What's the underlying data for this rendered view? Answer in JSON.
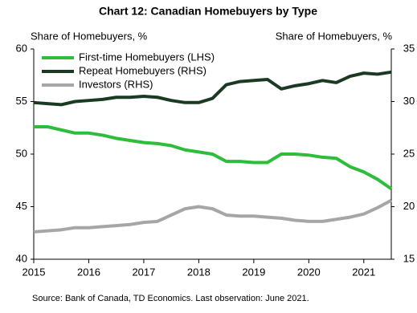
{
  "chart_data": {
    "type": "line",
    "title": "Chart 12: Canadian Homebuyers by Type",
    "y_label": "Share of Homebuyers, %",
    "y2_label": "Share of Homebuyers, %",
    "source": "Source: Bank of Canada, TD Economics. Last observation: June 2021.",
    "x": [
      2015,
      2015.25,
      2015.5,
      2015.75,
      2016,
      2016.25,
      2016.5,
      2016.75,
      2017,
      2017.25,
      2017.5,
      2017.75,
      2018,
      2018.25,
      2018.5,
      2018.75,
      2019,
      2019.25,
      2019.5,
      2019.75,
      2020,
      2020.25,
      2020.5,
      2020.75,
      2021,
      2021.25,
      2021.5
    ],
    "xlim": [
      2015,
      2021.5
    ],
    "xticks": [
      2015,
      2016,
      2017,
      2018,
      2019,
      2020,
      2021
    ],
    "ylim": [
      40,
      60
    ],
    "yticks": [
      40,
      45,
      50,
      55,
      60
    ],
    "y2lim": [
      15,
      35
    ],
    "y2ticks": [
      15,
      20,
      25,
      30,
      35
    ],
    "legend": "upper-left",
    "series": [
      {
        "name": "First-time Homebuyers (LHS)",
        "color": "#2dbd3a",
        "axis": "y",
        "values": [
          52.6,
          52.6,
          52.3,
          52.0,
          52.0,
          51.8,
          51.5,
          51.3,
          51.1,
          51.0,
          50.8,
          50.4,
          50.2,
          50.0,
          49.3,
          49.3,
          49.2,
          49.2,
          50.0,
          50.0,
          49.9,
          49.7,
          49.6,
          48.8,
          48.3,
          47.6,
          46.7
        ]
      },
      {
        "name": "Repeat Homebuyers (RHS)",
        "color": "#1b3a24",
        "axis": "y2",
        "values": [
          29.9,
          29.8,
          29.7,
          30.0,
          30.1,
          30.2,
          30.4,
          30.4,
          30.5,
          30.4,
          30.1,
          29.9,
          29.9,
          30.3,
          31.6,
          31.9,
          32.0,
          32.1,
          31.2,
          31.5,
          31.7,
          32.0,
          31.8,
          32.4,
          32.7,
          32.6,
          32.8
        ]
      },
      {
        "name": "Investors (RHS)",
        "color": "#a6a6a6",
        "axis": "y2",
        "values": [
          17.6,
          17.7,
          17.8,
          18.0,
          18.0,
          18.1,
          18.2,
          18.3,
          18.5,
          18.6,
          19.2,
          19.8,
          20.0,
          19.8,
          19.2,
          19.1,
          19.1,
          19.0,
          18.9,
          18.7,
          18.6,
          18.6,
          18.8,
          19.0,
          19.3,
          19.9,
          20.6
        ]
      }
    ]
  }
}
